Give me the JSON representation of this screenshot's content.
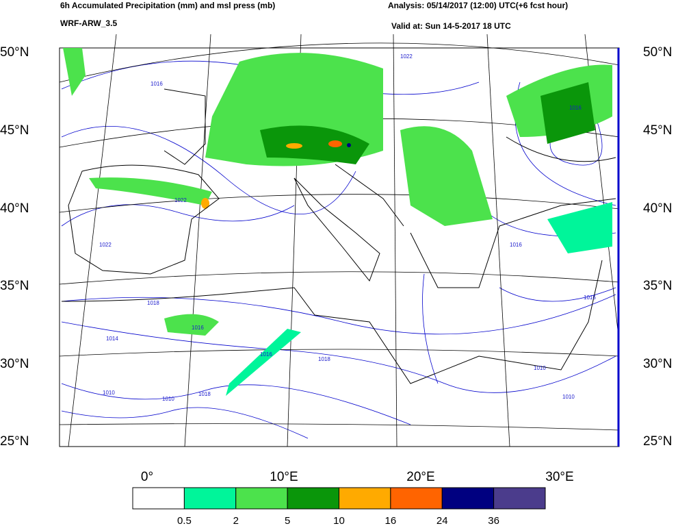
{
  "header": {
    "title": "6h Accumulated Precipitation (mm) and msl press (mb)",
    "model": "WRF-ARW_3.5",
    "analysis": "Analysis: 05/14/2017 (12:00) UTC(+6 fcst hour)",
    "valid": "Valid at: Sun 14-5-2017  18 UTC"
  },
  "map": {
    "lat_labels": [
      "50°N",
      "45°N",
      "40°N",
      "35°N",
      "30°N",
      "25°N"
    ],
    "lon_labels": [
      "0°",
      "10°E",
      "20°E",
      "30°E"
    ],
    "isobar_labels": [
      "1022",
      "1016",
      "1022",
      "1022",
      "1018",
      "1014",
      "1016",
      "1016",
      "1018",
      "1010",
      "1010",
      "1018",
      "1016",
      "1016",
      "1010",
      "1010",
      "1016"
    ]
  },
  "colorbar": {
    "colors": [
      "#ffffff",
      "#00f59a",
      "#4ce24c",
      "#0a960a",
      "#ffaa00",
      "#ff6400",
      "#000080",
      "#4b3c8c"
    ],
    "labels": [
      0.5,
      2,
      5,
      10,
      16,
      24,
      36
    ]
  }
}
